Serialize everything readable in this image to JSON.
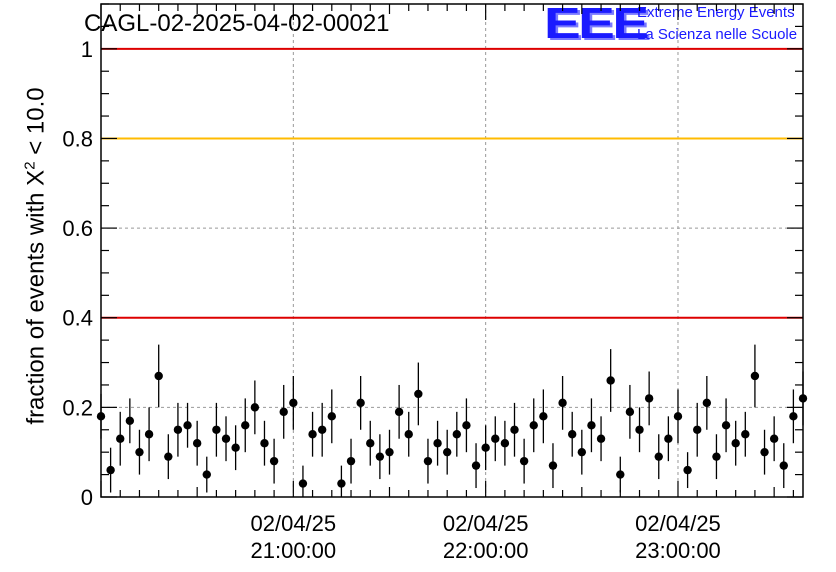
{
  "chart_data": {
    "type": "scatter",
    "title": "CAGL-02-2025-04-02-00021",
    "ylabel_prefix": "fraction of events with ",
    "ylabel_symbol": "X",
    "ylabel_power": "2",
    "ylabel_suffix": " < 10.0",
    "xlabel": "",
    "ylim": [
      0,
      1.1
    ],
    "xlim": [
      "02/04/25 20:00:00",
      "02/04/25 23:39:00"
    ],
    "x_tick_labels": [
      {
        "date": "02/04/25",
        "time": "21:00:00"
      },
      {
        "date": "02/04/25",
        "time": "22:00:00"
      },
      {
        "date": "02/04/25",
        "time": "23:00:00"
      }
    ],
    "y_ticks": [
      0,
      0.2,
      0.4,
      0.6,
      0.8,
      1
    ],
    "y_tick_labels": [
      "0",
      "0.2",
      "0.4",
      "0.6",
      "0.8",
      "1"
    ],
    "grid": true,
    "reference_lines": [
      {
        "y": 1.0,
        "color": "#dd0000"
      },
      {
        "y": 0.8,
        "color": "#ffbb00"
      },
      {
        "y": 0.4,
        "color": "#dd0000"
      }
    ],
    "marker_color": "#000000",
    "series": [
      {
        "x": [
          "20:00",
          "20:03",
          "20:06",
          "20:09",
          "20:12",
          "20:15",
          "20:18",
          "20:21",
          "20:24",
          "20:27",
          "20:30",
          "20:33",
          "20:36",
          "20:39",
          "20:42",
          "20:45",
          "20:48",
          "20:51",
          "20:54",
          "20:57",
          "21:00",
          "21:03",
          "21:06",
          "21:09",
          "21:12",
          "21:15",
          "21:18",
          "21:21",
          "21:24",
          "21:27",
          "21:30",
          "21:33",
          "21:36",
          "21:39",
          "21:42",
          "21:45",
          "21:48",
          "21:51",
          "21:54",
          "21:57",
          "22:00",
          "22:03",
          "22:06",
          "22:09",
          "22:12",
          "22:15",
          "22:18",
          "22:21",
          "22:24",
          "22:27",
          "22:30",
          "22:33",
          "22:36",
          "22:39",
          "22:42",
          "22:45",
          "22:48",
          "22:51",
          "22:54",
          "22:57",
          "23:00",
          "23:03",
          "23:06",
          "23:09",
          "23:12",
          "23:15",
          "23:18",
          "23:21",
          "23:24",
          "23:27",
          "23:30",
          "23:33",
          "23:36",
          "23:39"
        ],
        "y": [
          0.18,
          0.06,
          0.13,
          0.17,
          0.1,
          0.14,
          0.27,
          0.09,
          0.15,
          0.16,
          0.12,
          0.05,
          0.15,
          0.13,
          0.11,
          0.16,
          0.2,
          0.12,
          0.08,
          0.19,
          0.21,
          0.03,
          0.14,
          0.15,
          0.18,
          0.03,
          0.08,
          0.21,
          0.12,
          0.09,
          0.1,
          0.19,
          0.14,
          0.23,
          0.08,
          0.12,
          0.1,
          0.14,
          0.16,
          0.07,
          0.11,
          0.13,
          0.12,
          0.15,
          0.08,
          0.16,
          0.18,
          0.07,
          0.21,
          0.14,
          0.1,
          0.16,
          0.13,
          0.26,
          0.05,
          0.19,
          0.15,
          0.22,
          0.09,
          0.13,
          0.18,
          0.06,
          0.15,
          0.21,
          0.09,
          0.16,
          0.12,
          0.14,
          0.27,
          0.1,
          0.13,
          0.07,
          0.18,
          0.22
        ],
        "err": [
          0.05,
          0.05,
          0.06,
          0.05,
          0.05,
          0.06,
          0.07,
          0.05,
          0.06,
          0.05,
          0.05,
          0.04,
          0.06,
          0.05,
          0.05,
          0.06,
          0.06,
          0.05,
          0.05,
          0.06,
          0.06,
          0.04,
          0.05,
          0.06,
          0.06,
          0.04,
          0.05,
          0.06,
          0.05,
          0.05,
          0.05,
          0.06,
          0.05,
          0.07,
          0.05,
          0.05,
          0.05,
          0.05,
          0.06,
          0.05,
          0.05,
          0.05,
          0.05,
          0.06,
          0.05,
          0.06,
          0.06,
          0.05,
          0.06,
          0.05,
          0.05,
          0.06,
          0.05,
          0.07,
          0.04,
          0.06,
          0.05,
          0.06,
          0.05,
          0.05,
          0.06,
          0.04,
          0.06,
          0.06,
          0.05,
          0.06,
          0.05,
          0.05,
          0.07,
          0.05,
          0.05,
          0.05,
          0.06,
          0.06
        ]
      }
    ]
  }
}
